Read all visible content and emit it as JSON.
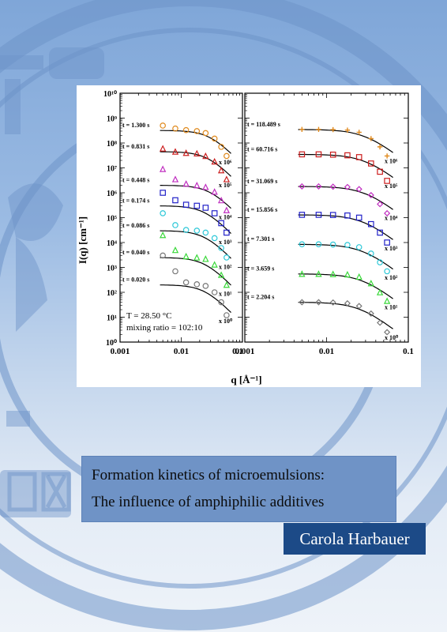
{
  "cover": {
    "title_line1": "Formation kinetics of microemulsions:",
    "title_line2": "The influence of amphiphilic additives",
    "author": "Carola Harbauer"
  },
  "colors": {
    "author_box": "#1c4a87",
    "title_box": "#6f93c6",
    "background": "#9bbbe3"
  },
  "chart_data": [
    {
      "type": "scatter",
      "title": "",
      "xlabel": "q [Å⁻¹]",
      "ylabel": "I(q) [cm⁻¹]",
      "xscale": "log",
      "yscale": "log",
      "xlim": [
        0.001,
        0.1
      ],
      "ylim": [
        1,
        10000000000
      ],
      "xticks": [
        "0.001",
        "0.01",
        "0.1"
      ],
      "yticks": [
        "10⁰",
        "10¹",
        "10²",
        "10³",
        "10⁴",
        "10⁵",
        "10⁶",
        "10⁷",
        "10⁸",
        "10⁹",
        "10¹⁰"
      ],
      "annotation": [
        "T = 28.50 °C",
        "mixing ratio = 102:10"
      ],
      "series": [
        {
          "name": "t = 1.300 s",
          "scale": "x 10⁶",
          "color": "#e08a1e",
          "marker": "circle",
          "plateau": 320000000,
          "knee": 0.03,
          "x": [
            0.005,
            0.008,
            0.012,
            0.018,
            0.025,
            0.035,
            0.045,
            0.055
          ],
          "y": [
            500000000,
            380000000,
            330000000,
            300000000,
            250000000,
            150000000,
            70000000,
            30000000
          ]
        },
        {
          "name": "t = 0.831 s",
          "scale": "x 10⁵",
          "color": "#cc1e1e",
          "marker": "triangle",
          "plateau": 45000000,
          "knee": 0.028,
          "x": [
            0.005,
            0.008,
            0.012,
            0.018,
            0.025,
            0.035,
            0.045,
            0.055
          ],
          "y": [
            60000000,
            45000000,
            40000000,
            38000000,
            30000000,
            18000000,
            8000000,
            3500000
          ]
        },
        {
          "name": "t = 0.448 s",
          "scale": "x 10⁴",
          "color": "#c02ec0",
          "marker": "triangle",
          "plateau": 2000000,
          "knee": 0.03,
          "x": [
            0.005,
            0.008,
            0.012,
            0.018,
            0.025,
            0.035,
            0.045,
            0.055
          ],
          "y": [
            9000000,
            3500000,
            2300000,
            2000000,
            1700000,
            1100000,
            500000,
            200000
          ]
        },
        {
          "name": "t = 0.174 s",
          "scale": "x 10³",
          "color": "#2222c8",
          "marker": "square",
          "plateau": 300000,
          "knee": 0.025,
          "x": [
            0.005,
            0.008,
            0.012,
            0.018,
            0.025,
            0.035,
            0.045,
            0.055
          ],
          "y": [
            1000000,
            500000,
            330000,
            300000,
            250000,
            150000,
            60000,
            25000
          ]
        },
        {
          "name": "t = 0.086 s",
          "scale": "x 10²",
          "color": "#2ec8d8",
          "marker": "circle",
          "plateau": 30000,
          "knee": 0.025,
          "x": [
            0.005,
            0.008,
            0.012,
            0.018,
            0.025,
            0.035,
            0.045,
            0.055
          ],
          "y": [
            150000,
            50000,
            32000,
            30000,
            25000,
            15000,
            6000,
            2500
          ]
        },
        {
          "name": "t = 0.040 s",
          "scale": "x 10¹",
          "color": "#3ad83a",
          "marker": "triangle",
          "plateau": 2500,
          "knee": 0.025,
          "x": [
            0.005,
            0.008,
            0.012,
            0.018,
            0.025,
            0.035,
            0.045,
            0.055
          ],
          "y": [
            20000,
            5000,
            2800,
            2500,
            2200,
            1300,
            500,
            200
          ]
        },
        {
          "name": "t = 0.020 s",
          "scale": "x 10⁰",
          "color": "#777777",
          "marker": "circle",
          "plateau": 200,
          "knee": 0.025,
          "x": [
            0.005,
            0.008,
            0.012,
            0.018,
            0.025,
            0.035,
            0.045,
            0.055
          ],
          "y": [
            3000,
            700,
            250,
            210,
            180,
            100,
            40,
            12
          ]
        }
      ]
    },
    {
      "type": "scatter",
      "title": "",
      "xlabel": "q [Å⁻¹]",
      "ylabel": "",
      "xscale": "log",
      "yscale": "log",
      "xlim": [
        0.001,
        0.1
      ],
      "ylim": [
        1,
        10000000000
      ],
      "xticks": [
        "0.001",
        "0.01",
        "0.1"
      ],
      "series": [
        {
          "name": "t = 118.489 s",
          "scale": "x 10⁶",
          "color": "#e08a1e",
          "marker": "plus",
          "plateau": 350000000,
          "knee": 0.03,
          "x": [
            0.005,
            0.008,
            0.012,
            0.018,
            0.025,
            0.035,
            0.045,
            0.055
          ],
          "y": [
            350000000,
            350000000,
            345000000,
            330000000,
            270000000,
            150000000,
            70000000,
            30000000
          ]
        },
        {
          "name": "t = 60.716 s",
          "scale": "x 10⁵",
          "color": "#cc1e1e",
          "marker": "square",
          "plateau": 35000000,
          "knee": 0.03,
          "x": [
            0.005,
            0.008,
            0.012,
            0.018,
            0.025,
            0.035,
            0.045,
            0.055
          ],
          "y": [
            35000000,
            35000000,
            34000000,
            32000000,
            27000000,
            15000000,
            7000000,
            3000000
          ]
        },
        {
          "name": "t = 31.069 s",
          "scale": "x 10⁴",
          "color": "#c02ec0",
          "marker": "diamond",
          "plateau": 1800000,
          "knee": 0.03,
          "x": [
            0.005,
            0.008,
            0.012,
            0.018,
            0.025,
            0.035,
            0.045,
            0.055
          ],
          "y": [
            1800000,
            1800000,
            1750000,
            1700000,
            1400000,
            800000,
            350000,
            150000
          ]
        },
        {
          "name": "t = 15.856 s",
          "scale": "x 10³",
          "color": "#2222c8",
          "marker": "square",
          "plateau": 130000,
          "knee": 0.028,
          "x": [
            0.005,
            0.008,
            0.012,
            0.018,
            0.025,
            0.035,
            0.045,
            0.055
          ],
          "y": [
            130000,
            130000,
            128000,
            122000,
            100000,
            55000,
            25000,
            10000
          ]
        },
        {
          "name": "t = 7.301 s",
          "scale": "x 10²",
          "color": "#2ec8d8",
          "marker": "circle",
          "plateau": 8500,
          "knee": 0.028,
          "x": [
            0.005,
            0.008,
            0.012,
            0.018,
            0.025,
            0.035,
            0.045,
            0.055
          ],
          "y": [
            8500,
            8500,
            8300,
            8000,
            6500,
            3600,
            1600,
            700
          ]
        },
        {
          "name": "t = 3.659 s",
          "scale": "x 10¹",
          "color": "#3ad83a",
          "marker": "triangle",
          "plateau": 550,
          "knee": 0.028,
          "x": [
            0.005,
            0.008,
            0.012,
            0.018,
            0.025,
            0.035,
            0.045,
            0.055
          ],
          "y": [
            550,
            550,
            540,
            520,
            420,
            230,
            100,
            45
          ]
        },
        {
          "name": "t = 2.204 s",
          "scale": "x 10⁰",
          "color": "#777777",
          "marker": "diamond",
          "plateau": 40,
          "knee": 0.026,
          "x": [
            0.005,
            0.008,
            0.012,
            0.018,
            0.025,
            0.035,
            0.045,
            0.055
          ],
          "y": [
            40,
            40,
            39,
            36,
            28,
            14,
            6,
            2.5
          ]
        }
      ]
    }
  ]
}
